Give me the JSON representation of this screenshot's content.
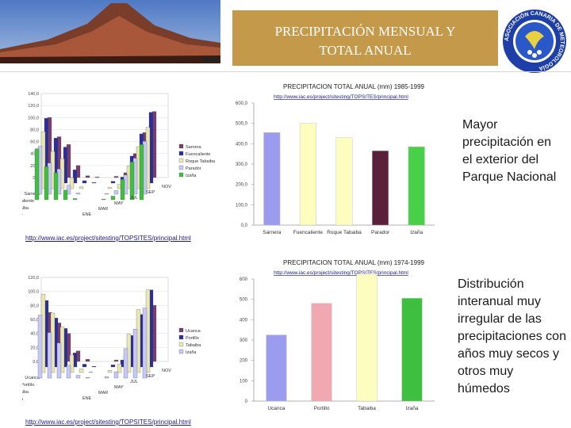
{
  "header": {
    "title_line1": "PRECIPITACIÓN MENSUAL Y",
    "title_line2": "TOTAL ANUAL"
  },
  "side_text": {
    "top": "Mayor precipitación en el exterior del Parque Nacional",
    "bottom": "Distribución interanual muy irregular de las precipitaciones con años muy secos y otros muy húmedos"
  },
  "logo": {
    "text": "ASOCIACIÓN CANARIA DE METEOROLOGÍA"
  },
  "colors": {
    "title_bg": "#c49a4a",
    "bar1": "#9b9bf0",
    "bar2": "#fdfdc0",
    "bar3": "#5a1f3a",
    "bar4": "#49d049",
    "bar5": "#f2a8b0",
    "bar6": "#3fbf3f"
  },
  "chart_data": [
    {
      "type": "bar",
      "title": "PRECIPITACION TOTAL ANUAL (mm) 1985-1999",
      "url": "http://www.iac.es/project/sitesting/TOPSITES/principal.html",
      "categories": [
        "Sarnera",
        "Fuencaliente",
        "Roque Tabaiba",
        "Parador",
        "Izaña"
      ],
      "values": [
        455,
        500,
        430,
        365,
        385
      ],
      "yticks": [
        "0,0",
        "100,0",
        "200,0",
        "300,0",
        "400,0",
        "500,0",
        "600,0"
      ],
      "ylim": [
        0,
        600
      ]
    },
    {
      "type": "bar",
      "title": "PRECIPITACION TOTAL ANUAL (mm) 1974-1999",
      "url": "http://www.iac.es/project/sitesting/TOPSITES/principal.html",
      "categories": [
        "Ucanca",
        "Portillo",
        "Tabaiba",
        "Izaña"
      ],
      "values": [
        325,
        480,
        625,
        505
      ],
      "yticks": [
        "0",
        "100",
        "200",
        "300",
        "400",
        "500",
        "600"
      ],
      "ylim": [
        0,
        600
      ]
    },
    {
      "type": "bar",
      "subtype": "3d-monthly",
      "url": "http://www.iac.es/project/sitesting/TOPSITES/principal.html",
      "yticks": [
        "0,0",
        "20,0",
        "40,0",
        "60,0",
        "80,0",
        "100,0",
        "120,0",
        "140,0"
      ],
      "ylim": [
        0,
        140
      ],
      "months": [
        "ENE",
        "MAR",
        "MAY",
        "JUL",
        "SEP",
        "NOV"
      ],
      "legend": [
        "Sarnera",
        "Fuencaliente",
        "Roque Tabaiba",
        "Parador",
        "Izaña"
      ],
      "series": [
        {
          "name": "Sarnera",
          "values": [
            100,
            68,
            55,
            20,
            3,
            1,
            0,
            2,
            8,
            40,
            75,
            110
          ]
        },
        {
          "name": "Fuencaliente",
          "values": [
            108,
            75,
            60,
            22,
            4,
            1,
            0,
            3,
            10,
            45,
            82,
            118
          ]
        },
        {
          "name": "Roque Tabaiba",
          "values": [
            95,
            62,
            50,
            18,
            3,
            0,
            0,
            2,
            7,
            38,
            70,
            102
          ]
        },
        {
          "name": "Parador",
          "values": [
            80,
            52,
            42,
            15,
            2,
            0,
            0,
            1,
            6,
            32,
            60,
            88
          ]
        },
        {
          "name": "Izaña",
          "values": [
            85,
            55,
            45,
            16,
            2,
            0,
            0,
            1,
            6,
            34,
            63,
            92
          ]
        }
      ]
    },
    {
      "type": "bar",
      "subtype": "3d-monthly",
      "url": "http://www.iac.es/project/sitesting/TOPSITES/principal.html",
      "yticks": [
        "0,0",
        "20,0",
        "40,0",
        "60,0",
        "80,0",
        "100,0",
        "120,0"
      ],
      "ylim": [
        0,
        120
      ],
      "months": [
        "ENE",
        "MAR",
        "MAY",
        "JUL",
        "SEP",
        "NOV"
      ],
      "legend": [
        "Ucanca",
        "Portillo",
        "Tabaiba",
        "Izaña"
      ],
      "series": [
        {
          "name": "Ucanca",
          "values": [
            70,
            55,
            40,
            15,
            3,
            0,
            0,
            2,
            8,
            35,
            55,
            80
          ]
        },
        {
          "name": "Portillo",
          "values": [
            95,
            70,
            55,
            20,
            4,
            1,
            0,
            3,
            10,
            45,
            75,
            110
          ]
        },
        {
          "name": "Tabaiba",
          "values": [
            112,
            85,
            65,
            25,
            5,
            1,
            0,
            3,
            12,
            55,
            90,
            118
          ]
        },
        {
          "name": "Izaña",
          "values": [
            90,
            65,
            50,
            18,
            4,
            1,
            0,
            2,
            9,
            42,
            70,
            100
          ]
        }
      ]
    }
  ]
}
